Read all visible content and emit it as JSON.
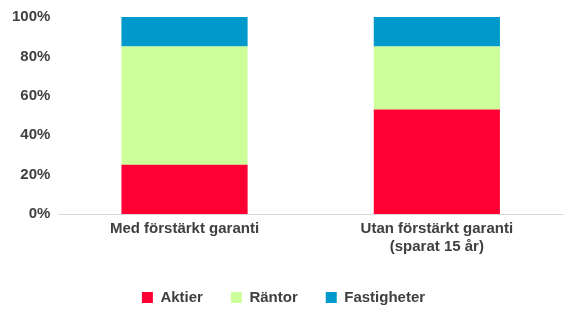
{
  "chart_data": {
    "type": "bar",
    "stacked": true,
    "grid": false,
    "legend": "bottom",
    "categories": [
      "Med förstärkt garanti",
      "Utan förstärkt garanti\n(sparat 15 år)"
    ],
    "series": [
      {
        "name": "Aktier",
        "color": "#ff0033",
        "values": [
          25,
          53
        ]
      },
      {
        "name": "Räntor",
        "color": "#ccff99",
        "values": [
          60,
          32
        ]
      },
      {
        "name": "Fastigheter",
        "color": "#0099cc",
        "values": [
          15,
          15
        ]
      }
    ],
    "ylim": [
      0,
      100
    ],
    "yticks": [
      {
        "value": 0,
        "label": "0%"
      },
      {
        "value": 20,
        "label": "20%"
      },
      {
        "value": 40,
        "label": "40%"
      },
      {
        "value": 60,
        "label": "60%"
      },
      {
        "value": 80,
        "label": "80%"
      },
      {
        "value": 100,
        "label": "100%"
      }
    ]
  }
}
